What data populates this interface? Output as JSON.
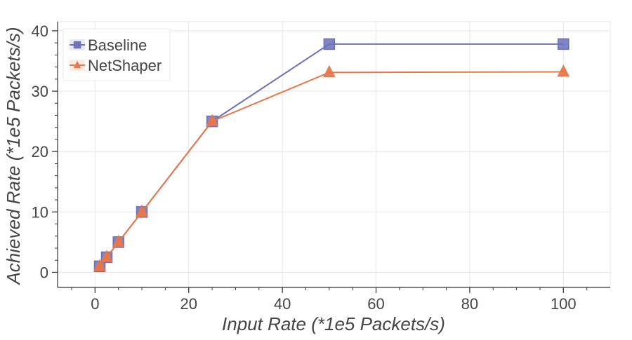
{
  "chart_data": {
    "type": "line",
    "xlabel": "Input Rate (*1e5 Packets/s)",
    "ylabel": "Achieved Rate (*1e5 Packets/s)",
    "xlim": [
      -8,
      110
    ],
    "ylim": [
      -2.5,
      41.5
    ],
    "xticks": [
      0,
      20,
      40,
      60,
      80,
      100
    ],
    "yticks": [
      0,
      10,
      20,
      30,
      40
    ],
    "grid": true,
    "legend_position": "top-left",
    "x": [
      1,
      2.5,
      5,
      10,
      25,
      50,
      100
    ],
    "series": [
      {
        "name": "Baseline",
        "marker": "square",
        "color": "#6b70b8",
        "values": [
          1,
          2.5,
          5,
          10,
          25,
          37.8,
          37.8
        ]
      },
      {
        "name": "NetShaper",
        "marker": "triangle",
        "color": "#e8764a",
        "values": [
          1,
          2.5,
          5,
          10,
          25,
          33.1,
          33.2
        ]
      }
    ]
  }
}
